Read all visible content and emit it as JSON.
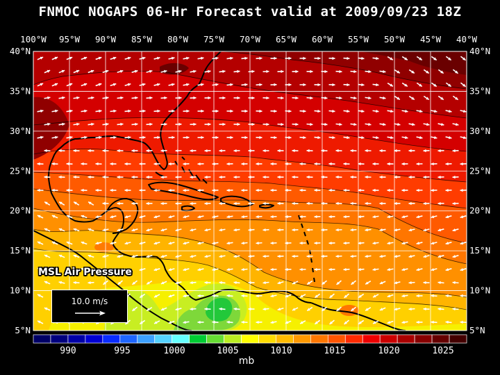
{
  "title": "FNMOC NOGAPS 06-Hr Forecast valid at 2009/09/23 18Z",
  "layer_label": "MSL Air Pressure",
  "reference_vector": {
    "label": "10.0 m/s",
    "speed_ms": 10.0
  },
  "lon_ticks": [
    "100°W",
    "95°W",
    "90°W",
    "85°W",
    "80°W",
    "75°W",
    "70°W",
    "65°W",
    "60°W",
    "55°W",
    "50°W",
    "45°W",
    "40°W"
  ],
  "lat_ticks": [
    "40°N",
    "35°N",
    "30°N",
    "25°N",
    "20°N",
    "15°N",
    "10°N",
    "5°N"
  ],
  "color_scale": {
    "unit": "mb",
    "labels": [
      "990",
      "995",
      "1000",
      "1005",
      "1010",
      "1015",
      "1020",
      "1025"
    ],
    "colors": [
      "#000066",
      "#00007f",
      "#0000a8",
      "#0000d4",
      "#0a2cff",
      "#1e66ff",
      "#3ca0ff",
      "#55d2ff",
      "#66ffff",
      "#00cc33",
      "#66dd33",
      "#bbee22",
      "#ffff00",
      "#ffdd00",
      "#ffbb00",
      "#ff9900",
      "#ff7700",
      "#ff5500",
      "#ff2a00",
      "#ee0000",
      "#cc0000",
      "#aa0000",
      "#880000",
      "#660000",
      "#440000"
    ]
  },
  "colors": {
    "coast": "#000000",
    "grid": "#ffffff",
    "vector": "#ffffff"
  }
}
